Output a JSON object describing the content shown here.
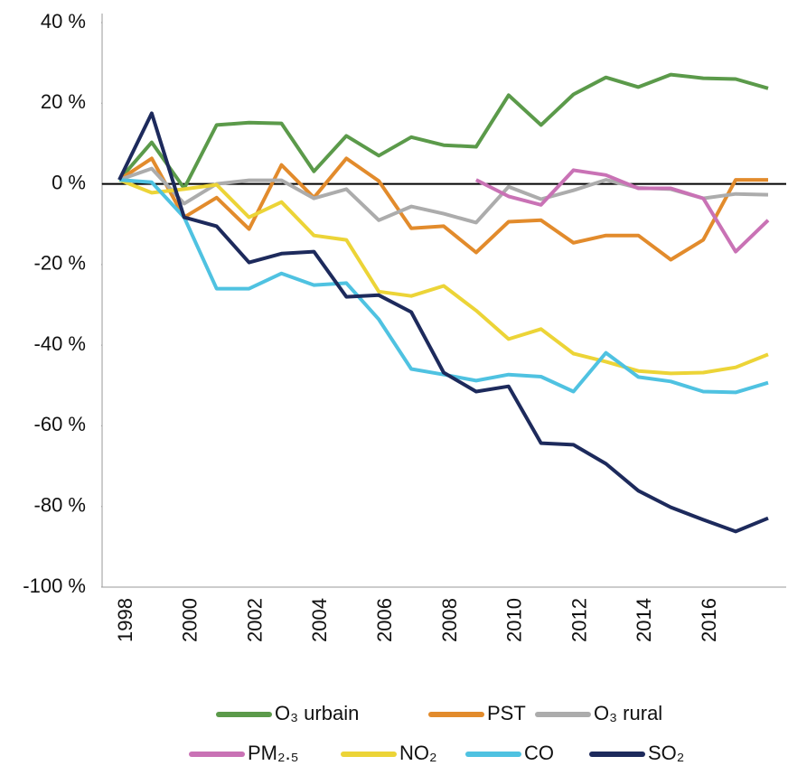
{
  "chart_data": {
    "type": "line",
    "categories": [
      "1998",
      null,
      "2000",
      null,
      "2002",
      null,
      "2004",
      null,
      "2006",
      null,
      "2008",
      null,
      "2010",
      null,
      "2012",
      null,
      "2014",
      null,
      "2016",
      null,
      null
    ],
    "ylim": [
      -100,
      40
    ],
    "yticks": [
      {
        "value": 40,
        "label": "40 %"
      },
      {
        "value": 20,
        "label": "20 %"
      },
      {
        "value": 0,
        "label": "0 %"
      },
      {
        "value": -20,
        "label": "-20 %"
      },
      {
        "value": -40,
        "label": "-40 %"
      },
      {
        "value": -60,
        "label": "-60 %"
      },
      {
        "value": -80,
        "label": "-80 %"
      },
      {
        "value": -100,
        "label": "-100 %"
      }
    ],
    "reference_line": 0,
    "series": [
      {
        "name": "O₃ urbain",
        "color": "#5b9a4a",
        "values": [
          1,
          10.3,
          -1.1,
          14.6,
          15.2,
          15,
          3.1,
          11.9,
          7,
          11.6,
          9.6,
          9.2,
          22,
          14.6,
          22.2,
          26.4,
          24,
          27.1,
          26.2,
          26,
          23.7
        ]
      },
      {
        "name": "PST",
        "color": "#e28b2c",
        "values": [
          1,
          6.3,
          -8.3,
          -3.4,
          -11.2,
          4.7,
          -3.4,
          6.3,
          0.7,
          -11,
          -10.5,
          -17,
          -9.4,
          -9,
          -14.6,
          -12.8,
          -12.8,
          -18.8,
          -13.9,
          1,
          1
        ]
      },
      {
        "name": "O₃ rural",
        "color": "#acacac",
        "values": [
          1,
          3.8,
          -4.9,
          0,
          0.9,
          0.9,
          -3.6,
          -1.3,
          -9,
          -5.6,
          -7.4,
          -9.6,
          -0.7,
          -3.8,
          -1.6,
          1,
          -1,
          -1.3,
          -3.6,
          -2.5,
          -2.7
        ]
      },
      {
        "name": "PM₂.₅",
        "color": "#c972b5",
        "values": [
          null,
          null,
          null,
          null,
          null,
          null,
          null,
          null,
          null,
          null,
          null,
          1,
          -3.1,
          -5.2,
          3.4,
          2.2,
          -1.1,
          -1.1,
          -3.6,
          -16.8,
          -9
        ]
      },
      {
        "name": "NO₂",
        "color": "#ecd437",
        "values": [
          1,
          -2.2,
          -1.3,
          -0.2,
          -8.3,
          -4.5,
          -12.8,
          -13.9,
          -26.7,
          -27.8,
          -25.3,
          -31.4,
          -38.5,
          -36,
          -42.1,
          -44.1,
          -46.4,
          -47,
          -46.8,
          -45.5,
          -42.3
        ]
      },
      {
        "name": "CO",
        "color": "#4fc2e1",
        "values": [
          1,
          0.4,
          -8.3,
          -26,
          -26,
          -22.2,
          -25.1,
          -24.6,
          -33.6,
          -45.9,
          -47.3,
          -48.8,
          -47.3,
          -47.8,
          -51.5,
          -41.9,
          -47.9,
          -49,
          -51.5,
          -51.7,
          -49.3
        ]
      },
      {
        "name": "SO₂",
        "color": "#1d2a5c",
        "values": [
          1,
          17.5,
          -8.3,
          -10.5,
          -19.5,
          -17.3,
          -16.8,
          -28,
          -27.6,
          -31.8,
          -46.8,
          -51.5,
          -50.2,
          -64.3,
          -64.7,
          -69.4,
          -76.1,
          -80.2,
          -83.3,
          -86.2,
          -82.9
        ]
      }
    ]
  }
}
